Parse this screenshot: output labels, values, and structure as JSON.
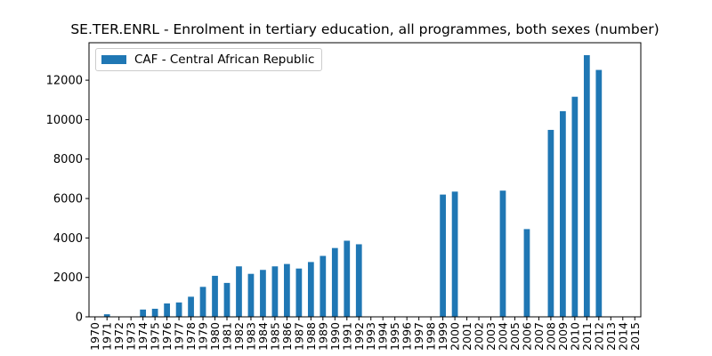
{
  "colors": {
    "bar": "#1f77b4",
    "axis": "#000000",
    "legend_border": "#cccccc"
  },
  "chart_data": {
    "type": "bar",
    "title": "SE.TER.ENRL - Enrolment in tertiary education, all programmes, both sexes (number)",
    "xlabel": "",
    "ylabel": "",
    "ylim": [
      0,
      13900
    ],
    "yticks": [
      0,
      2000,
      4000,
      6000,
      8000,
      10000,
      12000
    ],
    "grid": false,
    "legend_position": "upper-left",
    "categories": [
      "1970",
      "1971",
      "1972",
      "1973",
      "1974",
      "1975",
      "1976",
      "1977",
      "1978",
      "1979",
      "1980",
      "1981",
      "1982",
      "1983",
      "1984",
      "1985",
      "1986",
      "1987",
      "1988",
      "1989",
      "1990",
      "1991",
      "1992",
      "1993",
      "1994",
      "1995",
      "1996",
      "1997",
      "1998",
      "1999",
      "2000",
      "2001",
      "2002",
      "2003",
      "2004",
      "2005",
      "2006",
      "2007",
      "2008",
      "2009",
      "2010",
      "2011",
      "2012",
      "2013",
      "2014",
      "2015"
    ],
    "series": [
      {
        "name": "CAF - Central African Republic",
        "values": [
          null,
          130,
          null,
          null,
          370,
          410,
          680,
          730,
          1020,
          1520,
          2080,
          1720,
          2560,
          2180,
          2380,
          2560,
          2680,
          2450,
          2780,
          3090,
          3490,
          3860,
          3680,
          null,
          null,
          null,
          null,
          null,
          null,
          6200,
          6350,
          null,
          null,
          null,
          6400,
          null,
          4450,
          null,
          9480,
          10430,
          11160,
          13270,
          12520,
          null,
          null,
          null
        ]
      }
    ]
  }
}
